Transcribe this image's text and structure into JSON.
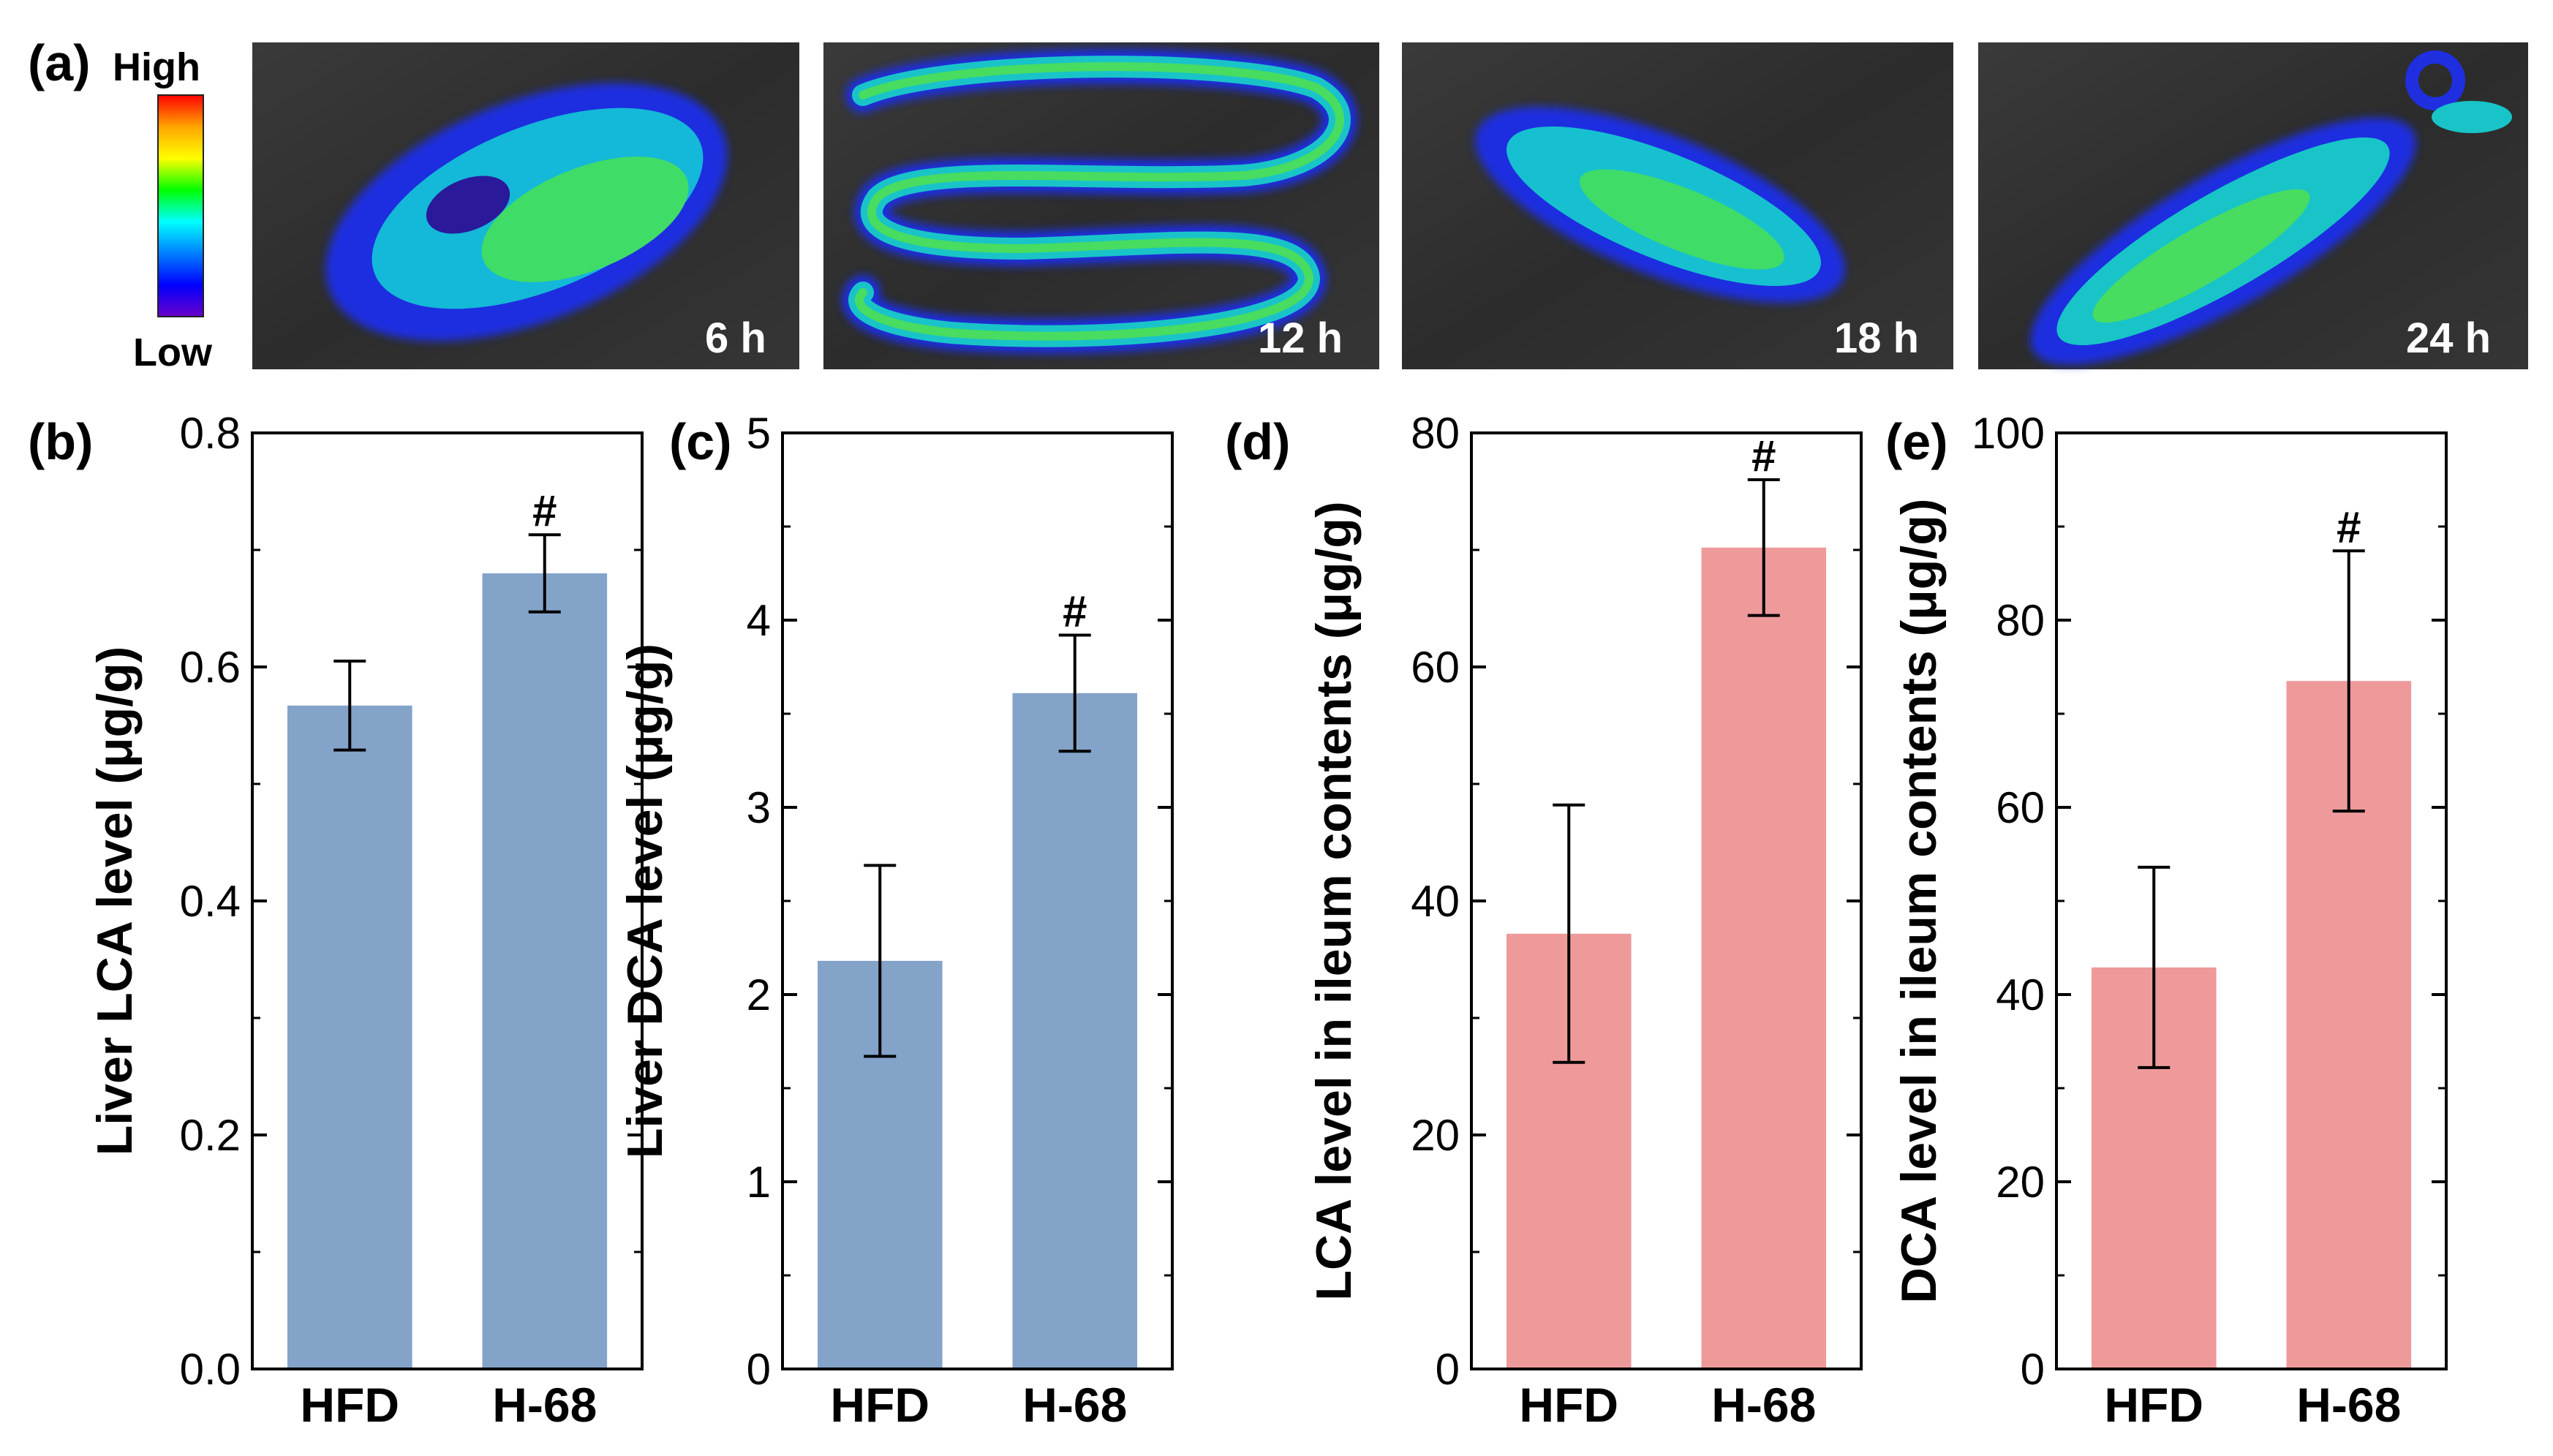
{
  "figure": {
    "panel_a": {
      "letter": "(a)",
      "colorbar": {
        "high_label": "High",
        "low_label": "Low",
        "colors": [
          "#ff0000",
          "#ffa500",
          "#ffff00",
          "#00ff00",
          "#00ffff",
          "#0080ff",
          "#0000ff",
          "#6a00c8"
        ]
      },
      "images": [
        {
          "time_label": "6 h"
        },
        {
          "time_label": "12 h"
        },
        {
          "time_label": "18 h"
        },
        {
          "time_label": "24 h"
        }
      ]
    }
  },
  "chart_data": [
    {
      "panel": "(b)",
      "type": "bar",
      "categories": [
        "HFD",
        "H-68"
      ],
      "values": [
        0.567,
        0.68
      ],
      "errors": [
        0.038,
        0.033
      ],
      "significance": [
        "",
        "#"
      ],
      "ylabel": "Liver LCA level (μg/g)",
      "ylim": [
        0,
        0.8
      ],
      "yticks": [
        0.0,
        0.2,
        0.4,
        0.6,
        0.8
      ],
      "ytick_labels": [
        "0.0",
        "0.2",
        "0.4",
        "0.6",
        "0.8"
      ],
      "bar_color": "#84a3c9"
    },
    {
      "panel": "(c)",
      "type": "bar",
      "categories": [
        "HFD",
        "H-68"
      ],
      "values": [
        2.18,
        3.61
      ],
      "errors": [
        0.51,
        0.31
      ],
      "significance": [
        "",
        "#"
      ],
      "ylabel": "Liver DCA level (μg/g)",
      "ylim": [
        0,
        5
      ],
      "yticks": [
        0,
        1,
        2,
        3,
        4,
        5
      ],
      "ytick_labels": [
        "0",
        "1",
        "2",
        "3",
        "4",
        "5"
      ],
      "bar_color": "#84a3c9"
    },
    {
      "panel": "(d)",
      "type": "bar",
      "categories": [
        "HFD",
        "H-68"
      ],
      "values": [
        37.2,
        70.2
      ],
      "errors": [
        11.0,
        5.8
      ],
      "significance": [
        "",
        "#"
      ],
      "ylabel": "LCA level in ileum contents (μg/g)",
      "ylim": [
        0,
        80
      ],
      "yticks": [
        0,
        20,
        40,
        60,
        80
      ],
      "ytick_labels": [
        "0",
        "20",
        "40",
        "60",
        "80"
      ],
      "bar_color": "#ee9a9b"
    },
    {
      "panel": "(e)",
      "type": "bar",
      "categories": [
        "HFD",
        "H-68"
      ],
      "values": [
        42.9,
        73.5
      ],
      "errors": [
        10.7,
        13.9
      ],
      "significance": [
        "",
        "#"
      ],
      "ylabel": "DCA level in ileum contents (μg/g)",
      "ylim": [
        0,
        100
      ],
      "yticks": [
        0,
        20,
        40,
        60,
        80,
        100
      ],
      "ytick_labels": [
        "0",
        "20",
        "40",
        "60",
        "80",
        "100"
      ],
      "bar_color": "#ee9a9b"
    }
  ]
}
